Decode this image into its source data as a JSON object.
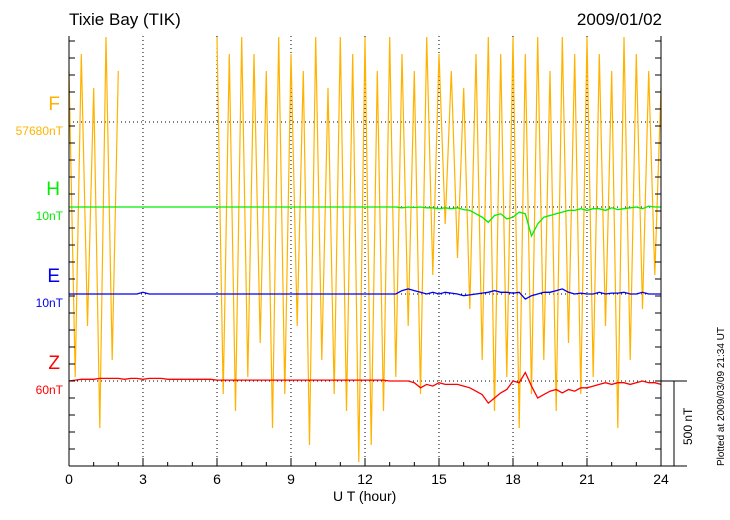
{
  "chart_data": {
    "type": "line",
    "title": "Tixie Bay (TIK)",
    "date": "2009/01/02",
    "xlabel": "U T (hour)",
    "xlim": [
      0,
      24
    ],
    "xticks": [
      "0",
      "3",
      "6",
      "9",
      "12",
      "15",
      "18",
      "21",
      "24"
    ],
    "scale_bar": "500 nT",
    "footer": "Plotted at 2009/03/09 21:34 UT",
    "x_step_hours": 0.25,
    "series": [
      {
        "name": "F",
        "baseline": "57680nT",
        "color": "#ffb300",
        "values": [
          300,
          -1500,
          400,
          -1200,
          200,
          -1800,
          500,
          -1400,
          300,
          null,
          null,
          null,
          null,
          null,
          null,
          null,
          null,
          -200,
          null,
          null,
          null,
          null,
          null,
          null,
          500,
          -1600,
          400,
          -1700,
          500,
          -1500,
          400,
          -1300,
          300,
          -1800,
          500,
          -1600,
          400,
          -1200,
          300,
          -1900,
          500,
          -1400,
          200,
          -1600,
          500,
          -1700,
          400,
          -2000,
          500,
          -1900,
          300,
          -1700,
          500,
          -1500,
          400,
          -1200,
          300,
          -1600,
          500,
          -900,
          400,
          -600,
          300,
          -800,
          200,
          -1100,
          400,
          -1400,
          500,
          -1700,
          400,
          -1500,
          500,
          -1800,
          400,
          -1600,
          500,
          -1400,
          300,
          -1700,
          500,
          -1300,
          400,
          -1600,
          500,
          -1500,
          400,
          -1200,
          300,
          -1800,
          500,
          -1400,
          400,
          -1100,
          300,
          -900,
          200
        ]
      },
      {
        "name": "H",
        "baseline": "10nT",
        "color": "#00ee00",
        "values": [
          0,
          0,
          0,
          0,
          0,
          0,
          0,
          0,
          0,
          0,
          0,
          0,
          0,
          0,
          0,
          0,
          0,
          0,
          0,
          0,
          0,
          0,
          0,
          0,
          0,
          0,
          0,
          0,
          0,
          0,
          0,
          0,
          0,
          0,
          0,
          0,
          0,
          0,
          0,
          0,
          0,
          0,
          0,
          0,
          0,
          0,
          0,
          0,
          0,
          0,
          0,
          0,
          0,
          0,
          -5,
          0,
          -3,
          0,
          -5,
          -5,
          -10,
          -5,
          -10,
          -5,
          -15,
          -20,
          -40,
          -60,
          -90,
          -50,
          -40,
          -70,
          -60,
          -30,
          -40,
          -170,
          -100,
          -60,
          -50,
          -40,
          -30,
          -20,
          -20,
          -10,
          -20,
          -10,
          -10,
          -20,
          -5,
          -15,
          -10,
          -5,
          0,
          -10,
          5,
          0,
          0
        ]
      },
      {
        "name": "E",
        "baseline": "10nT",
        "color": "#0000ee",
        "values": [
          0,
          0,
          0,
          0,
          0,
          0,
          0,
          0,
          0,
          0,
          0,
          0,
          10,
          0,
          0,
          0,
          0,
          0,
          0,
          0,
          0,
          0,
          0,
          0,
          0,
          0,
          0,
          0,
          0,
          0,
          0,
          0,
          0,
          0,
          0,
          0,
          0,
          0,
          0,
          0,
          0,
          0,
          0,
          0,
          0,
          0,
          0,
          0,
          0,
          0,
          0,
          0,
          0,
          0,
          20,
          30,
          20,
          10,
          0,
          10,
          0,
          10,
          5,
          0,
          -10,
          -5,
          0,
          5,
          10,
          20,
          10,
          10,
          5,
          10,
          -30,
          -10,
          0,
          10,
          10,
          20,
          30,
          10,
          0,
          5,
          0,
          0,
          10,
          0,
          5,
          5,
          10,
          0,
          0,
          10,
          0,
          0,
          0
        ]
      },
      {
        "name": "Z",
        "baseline": "60nT",
        "color": "#ff0000",
        "values": [
          0,
          5,
          10,
          10,
          10,
          15,
          15,
          15,
          15,
          10,
          15,
          15,
          10,
          15,
          15,
          15,
          10,
          10,
          10,
          10,
          10,
          10,
          10,
          10,
          5,
          5,
          5,
          5,
          5,
          5,
          5,
          5,
          5,
          5,
          5,
          5,
          5,
          5,
          5,
          5,
          5,
          5,
          5,
          5,
          5,
          5,
          5,
          5,
          5,
          5,
          5,
          5,
          0,
          0,
          0,
          0,
          -10,
          -40,
          -20,
          -30,
          -10,
          -20,
          -20,
          -20,
          -30,
          -40,
          -60,
          -80,
          -130,
          -100,
          -70,
          -50,
          0,
          -10,
          50,
          -30,
          -100,
          -80,
          -60,
          -50,
          -70,
          -50,
          -60,
          -40,
          -40,
          -30,
          -20,
          -10,
          -20,
          -10,
          -10,
          -20,
          -10,
          0,
          -10,
          -10,
          -20
        ]
      }
    ]
  }
}
